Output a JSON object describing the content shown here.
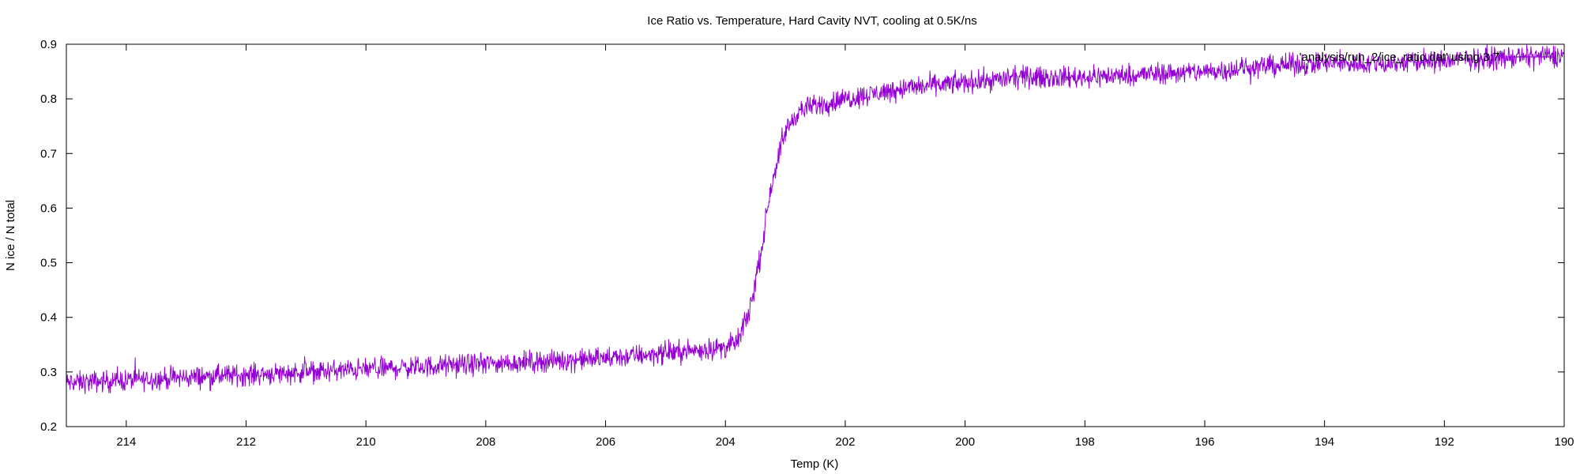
{
  "chart_data": {
    "type": "line",
    "title": "Ice Ratio vs. Temperature, Hard Cavity NVT, cooling at 0.5K/ns",
    "xlabel": "Temp (K)",
    "ylabel": "N ice / N total",
    "xlim": [
      215,
      190
    ],
    "ylim": [
      0.2,
      0.9
    ],
    "x_reversed": true,
    "xticks": [
      214,
      212,
      210,
      208,
      206,
      204,
      202,
      200,
      198,
      196,
      194,
      192,
      190
    ],
    "yticks": [
      0.2,
      0.3,
      0.4,
      0.5,
      0.6,
      0.7,
      0.8,
      0.9
    ],
    "grid": false,
    "legend_position": "top-right",
    "series": [
      {
        "name": "'analysis/run_2/ice_ratio.dat' using 3:7",
        "color": "#9400d3",
        "noise_amplitude": 0.012,
        "x": [
          215,
          214,
          213,
          212,
          211,
          210,
          209,
          208,
          207,
          206,
          205,
          204.5,
          204,
          203.8,
          203.6,
          203.4,
          203.3,
          203.2,
          203.0,
          202.8,
          202.6,
          202.0,
          201.0,
          200.0,
          199.0,
          198.0,
          197.0,
          196.0,
          195.0,
          194.0,
          193.0,
          192.0,
          191.0,
          190.0
        ],
        "values": [
          0.28,
          0.285,
          0.29,
          0.295,
          0.3,
          0.305,
          0.31,
          0.315,
          0.32,
          0.325,
          0.335,
          0.34,
          0.345,
          0.355,
          0.41,
          0.52,
          0.6,
          0.66,
          0.74,
          0.775,
          0.785,
          0.8,
          0.82,
          0.83,
          0.84,
          0.84,
          0.845,
          0.85,
          0.86,
          0.865,
          0.865,
          0.87,
          0.875,
          0.88
        ]
      }
    ]
  }
}
